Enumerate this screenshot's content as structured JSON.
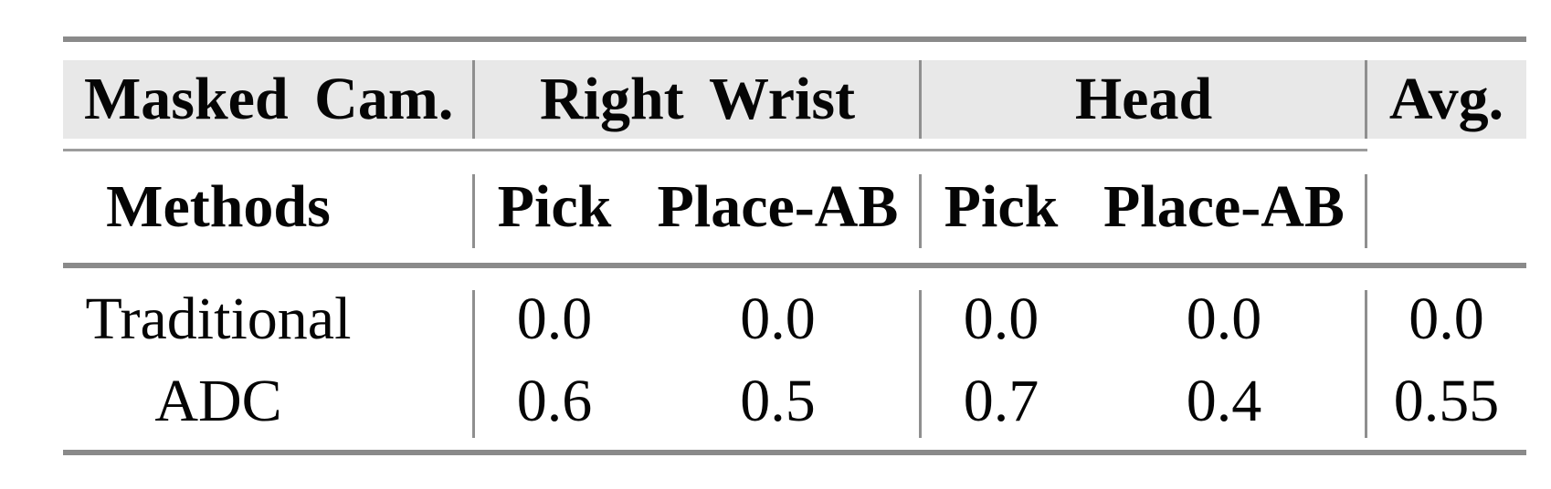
{
  "table": {
    "header": {
      "col1": "Masked Cam.",
      "group_right_wrist": "Right Wrist",
      "group_head": "Head",
      "avg": "Avg."
    },
    "subheader": {
      "col1": "Methods",
      "rw_pick": "Pick",
      "rw_place": "Place-AB",
      "head_pick": "Pick",
      "head_place": "Place-AB"
    },
    "rows": [
      {
        "method": "Traditional",
        "rw_pick": "0.0",
        "rw_place": "0.0",
        "head_pick": "0.0",
        "head_place": "0.0",
        "avg": "0.0"
      },
      {
        "method": "ADC",
        "rw_pick": "0.6",
        "rw_place": "0.5",
        "head_pick": "0.7",
        "head_place": "0.4",
        "avg": "0.55"
      }
    ]
  },
  "colors": {
    "band": "#e8e8e8",
    "rule_thick": "#8a8a8a",
    "rule_thin": "#9c9c9c",
    "vline": "#8f8f8f",
    "text": "#050505",
    "bg": "#ffffff"
  },
  "chart_data": {
    "type": "table",
    "column_groups": [
      "Masked Cam.",
      "Right Wrist",
      "Head",
      "Avg."
    ],
    "columns": [
      "Methods",
      "Right Wrist Pick",
      "Right Wrist Place-AB",
      "Head Pick",
      "Head Place-AB",
      "Avg."
    ],
    "rows": [
      [
        "Traditional",
        0.0,
        0.0,
        0.0,
        0.0,
        0.0
      ],
      [
        "ADC",
        0.6,
        0.5,
        0.7,
        0.4,
        0.55
      ]
    ]
  }
}
